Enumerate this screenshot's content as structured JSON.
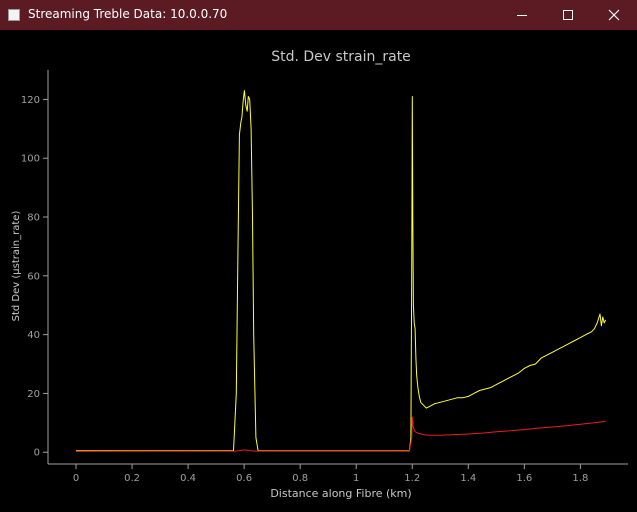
{
  "window": {
    "title": "Streaming Treble Data: 10.0.0.70",
    "icons": {
      "app": "app-window-icon",
      "minimize": "minimize-icon",
      "maximize": "maximize-icon",
      "close": "close-icon"
    }
  },
  "colors": {
    "titlebar": "#5c1a22",
    "background": "#000000",
    "axis": "#a0a0a0",
    "series_1": "#ffff33",
    "series_2": "#e8201a"
  },
  "chart_data": {
    "type": "line",
    "title": "Std. Dev strain_rate",
    "xlabel": "Distance along Fibre (km)",
    "ylabel": "Std Dev (µstrain_rate)",
    "xlim": [
      -0.1,
      1.97
    ],
    "ylim": [
      -4,
      130
    ],
    "xticks": [
      0,
      0.2,
      0.4,
      0.6,
      0.8,
      1,
      1.2,
      1.4,
      1.6,
      1.8
    ],
    "xtick_labels": [
      "0",
      "0.2",
      "0.4",
      "0.6",
      "0.8",
      "1",
      "1.2",
      "1.4",
      "1.6",
      "1.8"
    ],
    "yticks": [
      0,
      20,
      40,
      60,
      80,
      100,
      120
    ],
    "ytick_labels": [
      "0",
      "20",
      "40",
      "60",
      "80",
      "100",
      "120"
    ],
    "grid": false,
    "legend": "none",
    "series": [
      {
        "color": "#ffff33",
        "x": [
          0,
          0.562,
          0.572,
          0.578,
          0.583,
          0.588,
          0.592,
          0.597,
          0.601,
          0.606,
          0.611,
          0.615,
          0.62,
          0.625,
          0.63,
          0.634,
          0.642,
          0.65,
          0.8,
          1.0,
          1.19,
          1.195,
          1.198,
          1.2,
          1.202,
          1.204,
          1.207,
          1.21,
          1.213,
          1.216,
          1.22,
          1.225,
          1.23,
          1.24,
          1.25,
          1.26,
          1.27,
          1.28,
          1.3,
          1.32,
          1.34,
          1.36,
          1.38,
          1.4,
          1.42,
          1.44,
          1.46,
          1.48,
          1.5,
          1.52,
          1.54,
          1.56,
          1.58,
          1.6,
          1.62,
          1.64,
          1.66,
          1.68,
          1.7,
          1.72,
          1.74,
          1.76,
          1.78,
          1.8,
          1.82,
          1.84,
          1.85,
          1.86,
          1.87,
          1.875,
          1.88,
          1.885,
          1.89
        ],
        "y": [
          0.5,
          0.5,
          20,
          70,
          108,
          112,
          114,
          120,
          123,
          118,
          116,
          121,
          120,
          110,
          80,
          40,
          5,
          0.5,
          0.5,
          0.5,
          0.5,
          5,
          60,
          121,
          80,
          50,
          44,
          42,
          32,
          26,
          22,
          19,
          17,
          16,
          15,
          15.5,
          16,
          16.5,
          17,
          17.5,
          18,
          18.5,
          18.5,
          19,
          20,
          21,
          21.5,
          22,
          23,
          24,
          25,
          26,
          27,
          28.5,
          29.5,
          30,
          32,
          33,
          34,
          35,
          36,
          37,
          38,
          39,
          40,
          41,
          42,
          44,
          47,
          43,
          46,
          44,
          45
        ]
      },
      {
        "color": "#e8201a",
        "x": [
          0,
          0.57,
          0.6,
          0.64,
          1.19,
          1.198,
          1.2,
          1.203,
          1.205,
          1.21,
          1.22,
          1.24,
          1.26,
          1.3,
          1.35,
          1.4,
          1.45,
          1.5,
          1.55,
          1.6,
          1.65,
          1.7,
          1.75,
          1.8,
          1.85,
          1.89
        ],
        "y": [
          0.3,
          0.4,
          0.8,
          0.4,
          0.4,
          5,
          12,
          9,
          8,
          7,
          6.5,
          6,
          5.8,
          5.8,
          6,
          6.2,
          6.5,
          7,
          7.3,
          7.7,
          8.2,
          8.6,
          9,
          9.5,
          10,
          10.5
        ]
      }
    ]
  }
}
